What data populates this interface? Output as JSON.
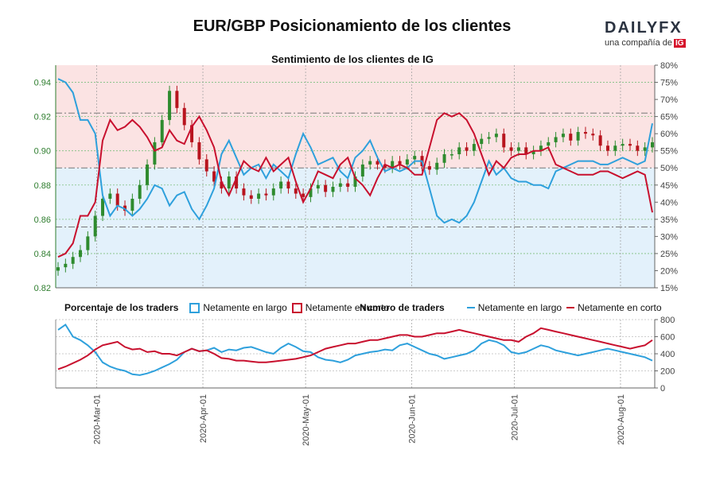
{
  "header": {
    "title": "EUR/GBP Posicionamiento de los clientes",
    "logo_text_a": "DAILY",
    "logo_text_b": "FX",
    "logo_sub": "una compañía de",
    "logo_ig": "IG"
  },
  "colors": {
    "candle_up": "#2e8b2e",
    "candle_down": "#b8141e",
    "long": "#2ea0dc",
    "short": "#c8102e",
    "bg_top": "#fbe3e3",
    "bg_bottom": "#e3f1fb",
    "grid": "#7fbf7f"
  },
  "chart_data": [
    {
      "type": "line",
      "title": "Sentimiento de los clientes de IG",
      "x_ticks": [
        "2020-Mar-01",
        "2020-Apr-01",
        "2020-May-01",
        "2020-Jun-01",
        "2020-Jul-01",
        "2020-Aug-01"
      ],
      "x_range": [
        "2020-02-18",
        "2020-08-11"
      ],
      "price_axis": {
        "ylim": [
          0.82,
          0.95
        ],
        "ticks": [
          "0.82",
          "0.84",
          "0.86",
          "0.88",
          "0.90",
          "0.92",
          "0.94"
        ]
      },
      "percent_axis": {
        "ylim": [
          15,
          80
        ],
        "ticks": [
          "15%",
          "20%",
          "25%",
          "30%",
          "35%",
          "40%",
          "45%",
          "50%",
          "55%",
          "60%",
          "65%",
          "70%",
          "75%",
          "80%"
        ]
      },
      "reference_lines": [
        0.8555,
        0.89,
        0.922
      ],
      "price_closes": [
        0.832,
        0.834,
        0.838,
        0.842,
        0.85,
        0.862,
        0.872,
        0.875,
        0.868,
        0.865,
        0.872,
        0.88,
        0.892,
        0.905,
        0.918,
        0.935,
        0.925,
        0.915,
        0.905,
        0.895,
        0.888,
        0.882,
        0.878,
        0.885,
        0.878,
        0.874,
        0.872,
        0.875,
        0.874,
        0.878,
        0.882,
        0.878,
        0.875,
        0.873,
        0.878,
        0.88,
        0.876,
        0.879,
        0.881,
        0.879,
        0.885,
        0.892,
        0.894,
        0.892,
        0.89,
        0.894,
        0.892,
        0.895,
        0.897,
        0.891,
        0.889,
        0.893,
        0.898,
        0.898,
        0.902,
        0.9,
        0.904,
        0.907,
        0.908,
        0.91,
        0.902,
        0.9,
        0.902,
        0.898,
        0.9,
        0.903,
        0.905,
        0.908,
        0.91,
        0.906,
        0.911,
        0.91,
        0.909,
        0.903,
        0.9,
        0.903,
        0.904,
        0.903,
        0.9,
        0.902,
        0.905
      ],
      "series": [
        {
          "name": "Netamente en largo",
          "values": [
            76,
            75,
            72,
            64,
            64,
            60,
            42,
            36,
            39,
            38,
            36,
            38,
            41,
            45,
            44,
            39,
            42,
            43,
            38,
            35,
            39,
            44,
            54,
            58,
            53,
            48,
            50,
            51,
            47,
            51,
            49,
            47,
            54,
            60,
            56,
            51,
            52,
            53,
            49,
            47,
            53,
            55,
            58,
            53,
            49,
            50,
            49,
            50,
            52,
            52,
            44,
            36,
            34,
            35,
            34,
            36,
            40,
            46,
            52,
            48,
            50,
            47,
            46,
            46,
            45,
            45,
            44,
            49,
            50,
            51,
            52,
            52,
            52,
            51,
            51,
            52,
            53,
            52,
            51,
            52,
            63
          ]
        },
        {
          "name": "Netamente en corto",
          "values": [
            24,
            25,
            28,
            36,
            36,
            40,
            58,
            64,
            61,
            62,
            64,
            62,
            59,
            55,
            56,
            61,
            58,
            57,
            62,
            65,
            61,
            56,
            46,
            42,
            47,
            52,
            50,
            49,
            53,
            49,
            51,
            53,
            46,
            40,
            44,
            49,
            48,
            47,
            51,
            53,
            47,
            45,
            42,
            47,
            51,
            50,
            51,
            50,
            48,
            48,
            56,
            64,
            66,
            65,
            66,
            64,
            60,
            54,
            48,
            52,
            50,
            53,
            54,
            54,
            55,
            55,
            56,
            51,
            50,
            49,
            48,
            48,
            48,
            49,
            49,
            48,
            47,
            48,
            49,
            48,
            37
          ]
        }
      ]
    },
    {
      "type": "line",
      "title": "Numero de traders",
      "ylim": [
        0,
        800
      ],
      "y_ticks": [
        "0",
        "200",
        "400",
        "600",
        "800"
      ],
      "series": [
        {
          "name": "Netamente en largo",
          "values": [
            680,
            740,
            600,
            560,
            500,
            420,
            300,
            250,
            220,
            200,
            160,
            150,
            170,
            200,
            240,
            280,
            330,
            420,
            460,
            430,
            440,
            470,
            420,
            450,
            440,
            470,
            480,
            450,
            420,
            400,
            470,
            520,
            480,
            430,
            420,
            360,
            330,
            320,
            300,
            330,
            380,
            400,
            420,
            430,
            450,
            440,
            500,
            520,
            480,
            440,
            400,
            380,
            340,
            360,
            380,
            400,
            440,
            520,
            560,
            540,
            500,
            420,
            400,
            420,
            460,
            500,
            480,
            440,
            420,
            400,
            380,
            400,
            420,
            440,
            460,
            440,
            420,
            400,
            380,
            360,
            320
          ]
        },
        {
          "name": "Netamente en corto",
          "values": [
            220,
            250,
            290,
            330,
            380,
            450,
            500,
            520,
            540,
            480,
            450,
            460,
            420,
            430,
            400,
            400,
            380,
            420,
            460,
            430,
            440,
            400,
            350,
            340,
            320,
            320,
            310,
            300,
            300,
            310,
            320,
            330,
            340,
            360,
            380,
            420,
            460,
            480,
            500,
            520,
            520,
            540,
            560,
            560,
            580,
            600,
            620,
            620,
            600,
            600,
            620,
            640,
            640,
            660,
            680,
            660,
            640,
            620,
            600,
            580,
            560,
            560,
            540,
            600,
            640,
            700,
            680,
            660,
            640,
            620,
            600,
            580,
            560,
            540,
            520,
            500,
            480,
            460,
            480,
            500,
            560
          ]
        }
      ]
    }
  ],
  "legend": {
    "pct_title": "Porcentaje de los traders",
    "pct_long": "Netamente en largo",
    "pct_short": "Netamente en corto",
    "num_title": "Numero de traders",
    "num_long": "Netamente en largo",
    "num_short": "Netamente en corto"
  }
}
